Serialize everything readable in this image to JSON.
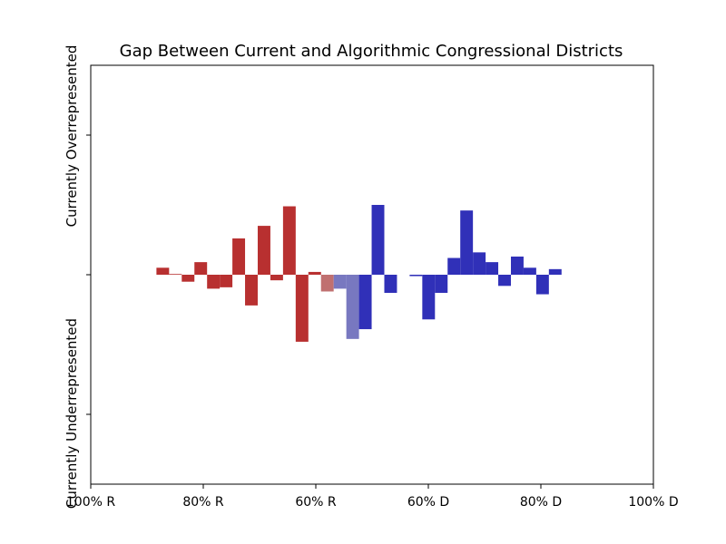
{
  "chart_data": {
    "type": "bar",
    "title": "Gap Between Current and Algorithmic Congressional Districts",
    "ylabel_top": "Currently Overrepresented",
    "ylabel_bottom": "Currently Underrepresented",
    "x_tick_labels": [
      "100% R",
      "80% R",
      "60% R",
      "60% D",
      "80% D",
      "100% D"
    ],
    "xlim": [
      -1.0,
      1.0
    ],
    "ylim": [
      -1.5,
      1.5
    ],
    "y_ticks": [
      -1,
      0,
      1
    ],
    "grid": false,
    "bin_width": 0.045,
    "colors": {
      "republican": "#b83030",
      "republican_light": "#c07070",
      "democrat": "#3030b8",
      "democrat_light": "#7878c0"
    },
    "bars": [
      {
        "x": -0.744,
        "value": 0.05,
        "party": "republican"
      },
      {
        "x": -0.699,
        "value": 0.005,
        "party": "republican"
      },
      {
        "x": -0.654,
        "value": -0.05,
        "party": "republican"
      },
      {
        "x": -0.609,
        "value": 0.09,
        "party": "republican"
      },
      {
        "x": -0.564,
        "value": -0.1,
        "party": "republican"
      },
      {
        "x": -0.519,
        "value": -0.09,
        "party": "republican"
      },
      {
        "x": -0.474,
        "value": 0.26,
        "party": "republican"
      },
      {
        "x": -0.429,
        "value": -0.22,
        "party": "republican"
      },
      {
        "x": -0.384,
        "value": 0.35,
        "party": "republican"
      },
      {
        "x": -0.339,
        "value": -0.04,
        "party": "republican"
      },
      {
        "x": -0.294,
        "value": 0.49,
        "party": "republican"
      },
      {
        "x": -0.249,
        "value": -0.48,
        "party": "republican"
      },
      {
        "x": -0.204,
        "value": 0.02,
        "party": "republican"
      },
      {
        "x": -0.159,
        "value": -0.12,
        "party": "republican_light"
      },
      {
        "x": -0.114,
        "value": -0.1,
        "party": "democrat_light"
      },
      {
        "x": -0.069,
        "value": -0.46,
        "party": "democrat_light"
      },
      {
        "x": -0.024,
        "value": -0.39,
        "party": "democrat"
      },
      {
        "x": 0.021,
        "value": 0.5,
        "party": "democrat"
      },
      {
        "x": 0.066,
        "value": -0.13,
        "party": "democrat"
      },
      {
        "x": 0.156,
        "value": -0.01,
        "party": "democrat"
      },
      {
        "x": 0.201,
        "value": -0.32,
        "party": "democrat"
      },
      {
        "x": 0.246,
        "value": -0.13,
        "party": "democrat"
      },
      {
        "x": 0.291,
        "value": 0.12,
        "party": "democrat"
      },
      {
        "x": 0.336,
        "value": 0.46,
        "party": "democrat"
      },
      {
        "x": 0.381,
        "value": 0.16,
        "party": "democrat"
      },
      {
        "x": 0.426,
        "value": 0.09,
        "party": "democrat"
      },
      {
        "x": 0.471,
        "value": -0.08,
        "party": "democrat"
      },
      {
        "x": 0.516,
        "value": 0.13,
        "party": "democrat"
      },
      {
        "x": 0.561,
        "value": 0.05,
        "party": "democrat"
      },
      {
        "x": 0.606,
        "value": -0.14,
        "party": "democrat"
      },
      {
        "x": 0.651,
        "value": 0.04,
        "party": "democrat"
      }
    ]
  }
}
